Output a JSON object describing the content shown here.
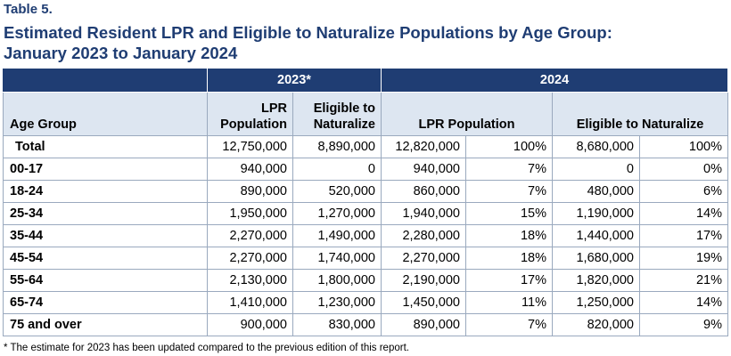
{
  "table_label": "Table 5.",
  "title_line1": "Estimated Resident LPR and Eligible to Naturalize Populations by Age Group:",
  "title_line2": "January 2023 to January 2024",
  "band": {
    "y2023": "2023*",
    "y2024": "2024"
  },
  "headers": {
    "age_group": "Age Group",
    "lpr_2023_line1": "LPR",
    "lpr_2023_line2": "Population",
    "elig_2023_line1": "Eligible to",
    "elig_2023_line2": "Naturalize",
    "lpr_2024": "LPR Population",
    "elig_2024": "Eligible to Naturalize"
  },
  "rows": [
    {
      "group": "Total",
      "lpr23": "12,750,000",
      "elig23": "8,890,000",
      "lpr24": "12,820,000",
      "lpr24pct": "100%",
      "elig24": "8,680,000",
      "elig24pct": "100%"
    },
    {
      "group": "00-17",
      "lpr23": "940,000",
      "elig23": "0",
      "lpr24": "940,000",
      "lpr24pct": "7%",
      "elig24": "0",
      "elig24pct": "0%"
    },
    {
      "group": "18-24",
      "lpr23": "890,000",
      "elig23": "520,000",
      "lpr24": "860,000",
      "lpr24pct": "7%",
      "elig24": "480,000",
      "elig24pct": "6%"
    },
    {
      "group": "25-34",
      "lpr23": "1,950,000",
      "elig23": "1,270,000",
      "lpr24": "1,940,000",
      "lpr24pct": "15%",
      "elig24": "1,190,000",
      "elig24pct": "14%"
    },
    {
      "group": "35-44",
      "lpr23": "2,270,000",
      "elig23": "1,490,000",
      "lpr24": "2,280,000",
      "lpr24pct": "18%",
      "elig24": "1,440,000",
      "elig24pct": "17%"
    },
    {
      "group": "45-54",
      "lpr23": "2,270,000",
      "elig23": "1,740,000",
      "lpr24": "2,270,000",
      "lpr24pct": "18%",
      "elig24": "1,680,000",
      "elig24pct": "19%"
    },
    {
      "group": "55-64",
      "lpr23": "2,130,000",
      "elig23": "1,800,000",
      "lpr24": "2,190,000",
      "lpr24pct": "17%",
      "elig24": "1,820,000",
      "elig24pct": "21%"
    },
    {
      "group": "65-74",
      "lpr23": "1,410,000",
      "elig23": "1,230,000",
      "lpr24": "1,450,000",
      "lpr24pct": "11%",
      "elig24": "1,250,000",
      "elig24pct": "14%"
    },
    {
      "group": "75 and over",
      "lpr23": "900,000",
      "elig23": "830,000",
      "lpr24": "890,000",
      "lpr24pct": "7%",
      "elig24": "820,000",
      "elig24pct": "9%"
    }
  ],
  "footnote": "* The estimate for 2023 has been updated compared to the previous edition of this report."
}
